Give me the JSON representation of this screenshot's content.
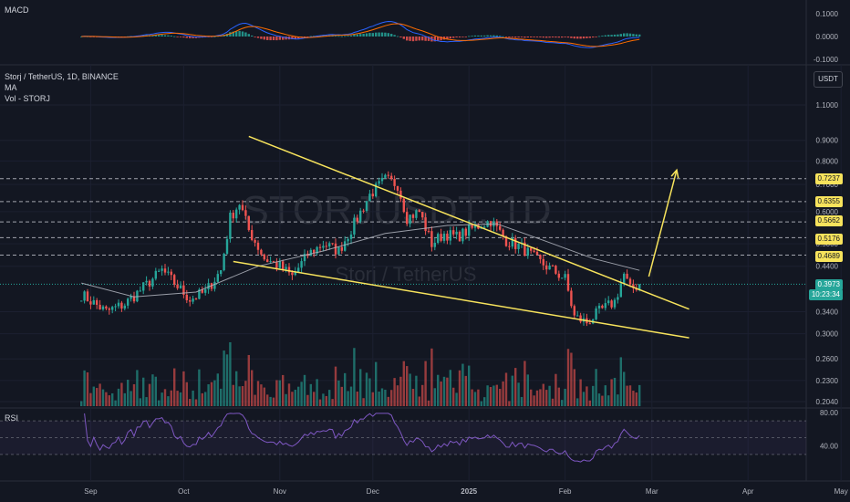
{
  "header": {
    "title": "Storj / TetherUS, 1D, BINANCE",
    "ma_label": "MA",
    "vol_label": "Vol - STORJ",
    "macd_label": "MACD",
    "rsi_label": "RSI",
    "currency_button": "USDT"
  },
  "watermark": {
    "symbol": "STORJUSDT, 1D",
    "name": "Storj / TetherUS"
  },
  "price_tags": {
    "current": "0.3973",
    "countdown": "10:23:34",
    "levels": [
      "0.7237",
      "0.6355",
      "0.5662",
      "0.5176",
      "0.4689"
    ]
  },
  "colors": {
    "background": "#131722",
    "up": "#26a69a",
    "down": "#ef5350",
    "trendline": "#f7e35c",
    "ma": "#b2b5be",
    "rsi": "#7e57c2",
    "macd": "#2962ff",
    "signal": "#ff6d00"
  },
  "chart_data": [
    {
      "type": "candlestick",
      "title": "Storj / TetherUS, 1D, BINANCE",
      "y_scale": "log",
      "y_ticks": [
        "1.1000",
        "0.9000",
        "0.8000",
        "0.7000",
        "0.6000",
        "0.5000",
        "0.4400",
        "0.3400",
        "0.3000",
        "0.2600",
        "0.2300",
        "0.2040"
      ],
      "x_ticks": [
        "Sep",
        "Oct",
        "Nov",
        "Dec",
        "2025",
        "Feb",
        "Mar",
        "Apr",
        "May"
      ],
      "key_levels": [
        0.7237,
        0.6355,
        0.5662,
        0.5176,
        0.4689
      ],
      "last_price": 0.3973,
      "price_path": [
        [
          "2024-08-29",
          0.375
        ],
        [
          "2024-09-06",
          0.34
        ],
        [
          "2024-09-12",
          0.355
        ],
        [
          "2024-09-18",
          0.39
        ],
        [
          "2024-09-24",
          0.43
        ],
        [
          "2024-09-28",
          0.4
        ],
        [
          "2024-10-03",
          0.365
        ],
        [
          "2024-10-08",
          0.38
        ],
        [
          "2024-10-13",
          0.43
        ],
        [
          "2024-10-16",
          0.58
        ],
        [
          "2024-10-19",
          0.63
        ],
        [
          "2024-10-22",
          0.54
        ],
        [
          "2024-10-27",
          0.46
        ],
        [
          "2024-11-01",
          0.44
        ],
        [
          "2024-11-05",
          0.415
        ],
        [
          "2024-11-10",
          0.47
        ],
        [
          "2024-11-15",
          0.5
        ],
        [
          "2024-11-20",
          0.48
        ],
        [
          "2024-11-25",
          0.56
        ],
        [
          "2024-11-30",
          0.66
        ],
        [
          "2024-12-05",
          0.72
        ],
        [
          "2024-12-09",
          0.7
        ],
        [
          "2024-12-12",
          0.58
        ],
        [
          "2024-12-16",
          0.6
        ],
        [
          "2024-12-20",
          0.5
        ],
        [
          "2024-12-24",
          0.53
        ],
        [
          "2024-12-28",
          0.52
        ],
        [
          "2025-01-03",
          0.55
        ],
        [
          "2025-01-08",
          0.57
        ],
        [
          "2025-01-13",
          0.51
        ],
        [
          "2025-01-18",
          0.49
        ],
        [
          "2025-01-23",
          0.455
        ],
        [
          "2025-01-28",
          0.43
        ],
        [
          "2025-02-01",
          0.41
        ],
        [
          "2025-02-04",
          0.33
        ],
        [
          "2025-02-08",
          0.32
        ],
        [
          "2025-02-12",
          0.34
        ],
        [
          "2025-02-17",
          0.36
        ],
        [
          "2025-02-20",
          0.42
        ],
        [
          "2025-02-22",
          0.385
        ],
        [
          "2025-02-25",
          0.3973
        ]
      ],
      "ma_path": [
        [
          "2024-08-29",
          0.4
        ],
        [
          "2024-09-15",
          0.37
        ],
        [
          "2024-10-05",
          0.38
        ],
        [
          "2024-10-25",
          0.44
        ],
        [
          "2024-11-15",
          0.48
        ],
        [
          "2024-12-05",
          0.53
        ],
        [
          "2024-12-25",
          0.555
        ],
        [
          "2025-01-10",
          0.56
        ],
        [
          "2025-01-25",
          0.51
        ],
        [
          "2025-02-10",
          0.46
        ],
        [
          "2025-02-25",
          0.43
        ]
      ],
      "trendlines": [
        {
          "from": [
            "2024-10-22",
            0.92
          ],
          "to": [
            "2025-03-13",
            0.345
          ]
        },
        {
          "from": [
            "2024-10-17",
            0.452
          ],
          "to": [
            "2025-03-13",
            0.293
          ]
        }
      ],
      "projection_arrow": {
        "from": [
          "2025-02-28",
          0.415
        ],
        "to": [
          "2025-03-09",
          0.76
        ]
      }
    },
    {
      "type": "histogram",
      "title": "MACD",
      "y_ticks": [
        "0.1000",
        "0.0000",
        "-0.1000"
      ]
    },
    {
      "type": "line",
      "title": "RSI",
      "y_ticks": [
        "80.00",
        "40.00"
      ]
    }
  ]
}
